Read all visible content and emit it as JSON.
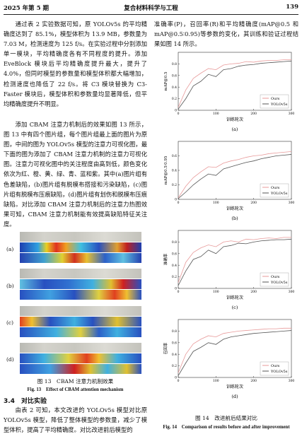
{
  "header": {
    "issue": "2025 年第 5 期",
    "journal": "复合材料科学与工程",
    "page": "139"
  },
  "left_column": {
    "paragraphs": [
      "通过表 2 实验数据可知，原 YOLOv5s 的平均精确度达到了 85.1%，模型体积为 13.9 MB，参数量为 7.03 M，检测速度为 125 f/s。在实验过程中分别添加单一模块，平均精确度各有不同程度的提升。添加 EveBlock 模块后平均精确度提升最大，提升了 4.0%，但同时模型的参数量和模型体积都大幅增加，检测速度也降低了 22 f/s。将 C3 模块替换为 C3-Faster 模块后，模型体积和参数量均显著降低，但平均精确度提升不明显。",
      "添加 CBAM 注意力机制后的效果如图 13 所示，图 13 中有四个图片组，每个图片组最上面的图片为原图，中间的图为 YOLOv5s 模型的注意力可视化图，最下面的图为添加了 CBAM 注意力机制的注意力可视化图。注意力可视化图中的关注程度由高到低，颜色变化依次为红、橙、黄、绿、青、蓝和紫。其中(a)图片组有色差缺陷，(b)图片组有脱模布搭接和污染缺陷，(c)图片组有脱模布压痕缺陷，(d)图片组有划伤和脱模布压痕缺陷。对比添加 CBAM 注意力机制后的注意力热图效果可知，CBAM 注意力机制能有效提高缺陷特征关注度。"
    ],
    "figure13": {
      "group_labels": [
        "(a)",
        "(b)",
        "(c)",
        "(d)"
      ],
      "caption_cn": "图 13　CBAM 注意力机制效果",
      "caption_en": "Fig. 13　Effect of CBAM attention mechanism"
    },
    "section_heading": "3.4　对比实验",
    "last_paragraph": "由表 2 可知，本文改进的 YOLOv5s 模型对比原 YOLOv5s 模型，降低了整体模型的参数量，减少了模型体积，提高了平均精确度。对比改进前后模型的"
  },
  "right_column": {
    "paragraph": "准确率(P)，召回率(R)和平均精确度(mAP@0.5 和 mAP@0.5∶0.95)等参数的变化，其训练和验证过程结果如图 14 所示。",
    "figure14": {
      "caption_cn": "图 14　改进前后结果对比",
      "caption_en": "Fig. 14　Comparison of results before and after improvement"
    }
  },
  "chart_data": [
    {
      "type": "line",
      "label": "(a)",
      "x_label": "训练轮次",
      "y_label": "mAP@0.5",
      "x": [
        0,
        20,
        40,
        60,
        80,
        100,
        120,
        140,
        160,
        180,
        200,
        220,
        240,
        260,
        280,
        300
      ],
      "xlim": [
        0,
        300
      ],
      "xticks": [
        0,
        100,
        200,
        300
      ],
      "ylim": [
        0,
        1
      ],
      "yticks": [
        0,
        0.2,
        0.4,
        0.6,
        0.8
      ],
      "legend": "lower right",
      "series": [
        {
          "name": "Ours",
          "color": "#e89a9a",
          "values": [
            0.05,
            0.35,
            0.55,
            0.64,
            0.72,
            0.7,
            0.78,
            0.8,
            0.81,
            0.84,
            0.83,
            0.85,
            0.86,
            0.86,
            0.87,
            0.87
          ]
        },
        {
          "name": "YOLOv5s",
          "color": "#555555",
          "values": [
            0.02,
            0.2,
            0.42,
            0.5,
            0.62,
            0.58,
            0.7,
            0.72,
            0.76,
            0.78,
            0.79,
            0.81,
            0.82,
            0.83,
            0.84,
            0.85
          ]
        }
      ]
    },
    {
      "type": "line",
      "label": "(b)",
      "x_label": "训练轮次",
      "y_label": "mAP@0.5∶0.95",
      "x": [
        0,
        20,
        40,
        60,
        80,
        100,
        120,
        140,
        160,
        180,
        200,
        220,
        240,
        260,
        280,
        300
      ],
      "xlim": [
        0,
        300
      ],
      "xticks": [
        0,
        100,
        200,
        300
      ],
      "ylim": [
        0,
        0.8
      ],
      "yticks": [
        0,
        0.2,
        0.4,
        0.6
      ],
      "legend": "lower right",
      "series": [
        {
          "name": "Ours",
          "color": "#e89a9a",
          "values": [
            0.02,
            0.18,
            0.3,
            0.38,
            0.45,
            0.44,
            0.5,
            0.53,
            0.55,
            0.58,
            0.6,
            0.61,
            0.63,
            0.64,
            0.65,
            0.66
          ]
        },
        {
          "name": "YOLOv5s",
          "color": "#555555",
          "values": [
            0.01,
            0.1,
            0.2,
            0.28,
            0.35,
            0.33,
            0.42,
            0.45,
            0.48,
            0.51,
            0.53,
            0.56,
            0.58,
            0.6,
            0.61,
            0.62
          ]
        }
      ]
    },
    {
      "type": "line",
      "label": "(c)",
      "x_label": "训练轮次",
      "y_label": "准确率",
      "x": [
        0,
        20,
        40,
        60,
        80,
        100,
        120,
        140,
        160,
        180,
        200,
        220,
        240,
        260,
        280,
        300
      ],
      "xlim": [
        0,
        300
      ],
      "xticks": [
        0,
        100,
        200,
        300
      ],
      "ylim": [
        0,
        1
      ],
      "yticks": [
        0,
        0.2,
        0.4,
        0.6,
        0.8
      ],
      "legend": "lower right",
      "series": [
        {
          "name": "Ours",
          "color": "#e89a9a",
          "values": [
            0.1,
            0.45,
            0.62,
            0.7,
            0.75,
            0.72,
            0.8,
            0.82,
            0.8,
            0.85,
            0.84,
            0.86,
            0.87,
            0.86,
            0.88,
            0.88
          ]
        },
        {
          "name": "YOLOv5s",
          "color": "#555555",
          "values": [
            0.05,
            0.3,
            0.5,
            0.55,
            0.66,
            0.6,
            0.72,
            0.74,
            0.78,
            0.77,
            0.8,
            0.82,
            0.83,
            0.84,
            0.84,
            0.85
          ]
        }
      ]
    },
    {
      "type": "line",
      "label": "(d)",
      "x_label": "训练轮次",
      "y_label": "召回率",
      "x": [
        0,
        20,
        40,
        60,
        80,
        100,
        120,
        140,
        160,
        180,
        200,
        220,
        240,
        260,
        280,
        300
      ],
      "xlim": [
        0,
        300
      ],
      "xticks": [
        0,
        100,
        200,
        300
      ],
      "ylim": [
        0,
        1
      ],
      "yticks": [
        0,
        0.2,
        0.4,
        0.6,
        0.8
      ],
      "legend": "lower right",
      "series": [
        {
          "name": "Ours",
          "color": "#e89a9a",
          "values": [
            0.08,
            0.4,
            0.58,
            0.66,
            0.72,
            0.7,
            0.76,
            0.78,
            0.8,
            0.81,
            0.82,
            0.83,
            0.84,
            0.84,
            0.85,
            0.85
          ]
        },
        {
          "name": "YOLOv5s",
          "color": "#555555",
          "values": [
            0.03,
            0.25,
            0.45,
            0.52,
            0.6,
            0.57,
            0.66,
            0.7,
            0.72,
            0.74,
            0.76,
            0.77,
            0.78,
            0.79,
            0.8,
            0.81
          ]
        }
      ]
    }
  ]
}
